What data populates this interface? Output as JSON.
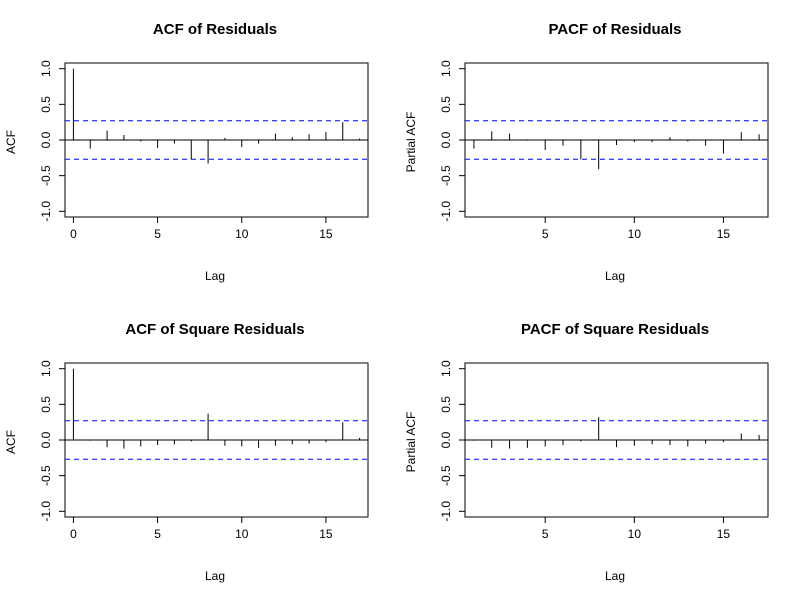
{
  "chart_data": [
    {
      "type": "bar",
      "title": "ACF of Residuals",
      "xlabel": "Lag",
      "ylabel": "ACF",
      "xlim": [
        -0.5,
        17.5
      ],
      "ylim": [
        -1.0,
        1.0
      ],
      "xticks": [
        0,
        5,
        10,
        15
      ],
      "yticks": [
        -1.0,
        -0.5,
        0.0,
        0.5,
        1.0
      ],
      "ytick_labels": [
        "-1.0",
        "-0.5",
        "0.0",
        "0.5",
        "1.0"
      ],
      "confidence_bound": 0.27,
      "lags": [
        0,
        1,
        2,
        3,
        4,
        5,
        6,
        7,
        8,
        9,
        10,
        11,
        12,
        13,
        14,
        15,
        16,
        17
      ],
      "values": [
        1.0,
        -0.12,
        0.13,
        0.07,
        -0.02,
        -0.11,
        -0.05,
        -0.27,
        -0.33,
        0.03,
        -0.1,
        -0.05,
        0.09,
        0.04,
        0.08,
        0.11,
        0.25,
        0.02
      ]
    },
    {
      "type": "bar",
      "title": "PACF of Residuals",
      "xlabel": "Lag",
      "ylabel": "Partial ACF",
      "xlim": [
        0.5,
        17.5
      ],
      "ylim": [
        -1.0,
        1.0
      ],
      "xticks": [
        5,
        10,
        15
      ],
      "yticks": [
        -1.0,
        -0.5,
        0.0,
        0.5,
        1.0
      ],
      "ytick_labels": [
        "-1.0",
        "-0.5",
        "0.0",
        "0.5",
        "1.0"
      ],
      "confidence_bound": 0.27,
      "lags": [
        1,
        2,
        3,
        4,
        5,
        6,
        7,
        8,
        9,
        10,
        11,
        12,
        13,
        14,
        15,
        16,
        17
      ],
      "values": [
        -0.12,
        0.12,
        0.09,
        0.01,
        -0.14,
        -0.08,
        -0.27,
        -0.41,
        -0.07,
        -0.03,
        -0.03,
        0.04,
        -0.02,
        -0.08,
        -0.19,
        0.11,
        0.08
      ]
    },
    {
      "type": "bar",
      "title": "ACF of Square Residuals",
      "xlabel": "Lag",
      "ylabel": "ACF",
      "xlim": [
        -0.5,
        17.5
      ],
      "ylim": [
        -1.0,
        1.0
      ],
      "xticks": [
        0,
        5,
        10,
        15
      ],
      "yticks": [
        -1.0,
        -0.5,
        0.0,
        0.5,
        1.0
      ],
      "ytick_labels": [
        "-1.0",
        "-0.5",
        "0.0",
        "0.5",
        "1.0"
      ],
      "confidence_bound": 0.27,
      "lags": [
        0,
        1,
        2,
        3,
        4,
        5,
        6,
        7,
        8,
        9,
        10,
        11,
        12,
        13,
        14,
        15,
        16,
        17
      ],
      "values": [
        1.0,
        -0.01,
        -0.1,
        -0.12,
        -0.09,
        -0.07,
        -0.06,
        -0.02,
        0.37,
        -0.08,
        -0.09,
        -0.11,
        -0.08,
        -0.06,
        -0.05,
        -0.03,
        0.25,
        0.03
      ]
    },
    {
      "type": "bar",
      "title": "PACF of Square Residuals",
      "xlabel": "Lag",
      "ylabel": "Partial ACF",
      "xlim": [
        0.5,
        17.5
      ],
      "ylim": [
        -1.0,
        1.0
      ],
      "xticks": [
        5,
        10,
        15
      ],
      "yticks": [
        -1.0,
        -0.5,
        0.0,
        0.5,
        1.0
      ],
      "ytick_labels": [
        "-1.0",
        "-0.5",
        "0.0",
        "0.5",
        "1.0"
      ],
      "confidence_bound": 0.27,
      "lags": [
        1,
        2,
        3,
        4,
        5,
        6,
        7,
        8,
        9,
        10,
        11,
        12,
        13,
        14,
        15,
        16,
        17
      ],
      "values": [
        -0.01,
        -0.11,
        -0.12,
        -0.11,
        -0.09,
        -0.07,
        -0.02,
        0.32,
        -0.1,
        -0.08,
        -0.06,
        -0.07,
        -0.09,
        -0.05,
        -0.03,
        0.09,
        0.07
      ]
    }
  ],
  "colors": {
    "bound_line": "#0000ff",
    "axis": "#000000",
    "bars": "#000000"
  }
}
